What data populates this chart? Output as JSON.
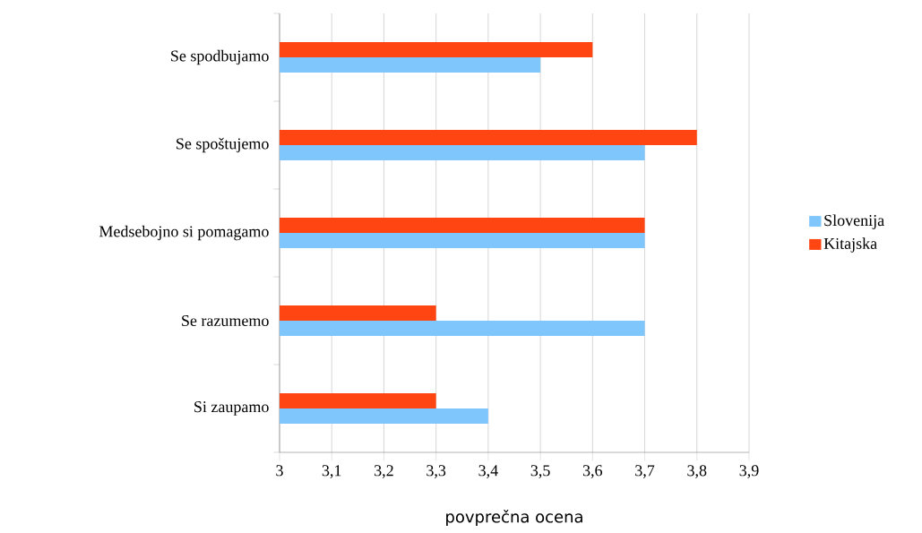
{
  "chart_data": {
    "type": "bar",
    "orientation": "horizontal",
    "xlabel": "povprečna ocena",
    "categories": [
      "Se spodbujamo",
      "Se spoštujemo",
      "Medsebojno si pomagamo",
      "Se razumemo",
      "Si zaupamo"
    ],
    "series": [
      {
        "name": "Slovenija",
        "color": "#7fc6fc",
        "values": [
          3.5,
          3.7,
          3.7,
          3.7,
          3.4
        ]
      },
      {
        "name": "Kitajska",
        "color": "#ff4512",
        "values": [
          3.6,
          3.8,
          3.7,
          3.3,
          3.3
        ]
      }
    ],
    "xlim": [
      3,
      3.9
    ],
    "xticks": [
      {
        "value": 3,
        "label": "3"
      },
      {
        "value": 3.1,
        "label": "3,1"
      },
      {
        "value": 3.2,
        "label": "3,2"
      },
      {
        "value": 3.3,
        "label": "3,3"
      },
      {
        "value": 3.4,
        "label": "3,4"
      },
      {
        "value": 3.5,
        "label": "3,5"
      },
      {
        "value": 3.6,
        "label": "3,6"
      },
      {
        "value": 3.7,
        "label": "3,7"
      },
      {
        "value": 3.8,
        "label": "3,8"
      },
      {
        "value": 3.9,
        "label": "3,9"
      }
    ],
    "grid": "x",
    "legend": "right"
  }
}
